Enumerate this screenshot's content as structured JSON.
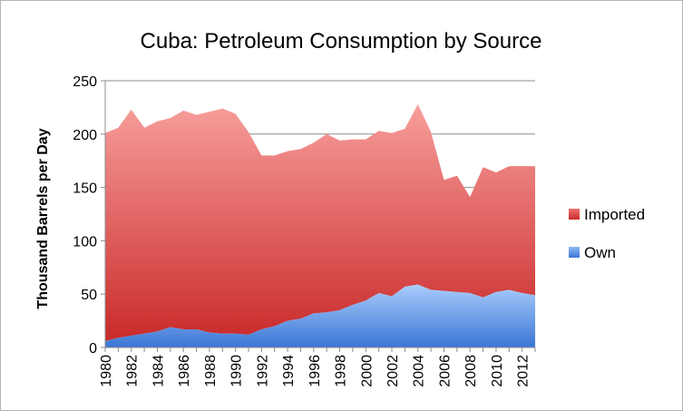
{
  "chart_data": {
    "type": "area",
    "stacked": true,
    "title": "Cuba: Petroleum Consumption by Source",
    "xlabel": "",
    "ylabel": "Thousand Barrels per Day",
    "ylim": [
      0,
      250
    ],
    "yticks": [
      0,
      50,
      100,
      150,
      200,
      250
    ],
    "x": [
      1980,
      1981,
      1982,
      1983,
      1984,
      1985,
      1986,
      1987,
      1988,
      1989,
      1990,
      1991,
      1992,
      1993,
      1994,
      1995,
      1996,
      1997,
      1998,
      1999,
      2000,
      2001,
      2002,
      2003,
      2004,
      2005,
      2006,
      2007,
      2008,
      2009,
      2010,
      2011,
      2012,
      2013
    ],
    "xtick_labels": [
      "1980",
      "1982",
      "1984",
      "1986",
      "1988",
      "1990",
      "1992",
      "1994",
      "1996",
      "1998",
      "2000",
      "2002",
      "2004",
      "2006",
      "2008",
      "2010",
      "2012"
    ],
    "grid": "horizontal",
    "legend_position": "right",
    "series": [
      {
        "name": "Own",
        "color": "#4f86e0",
        "values": [
          6,
          9,
          11,
          13,
          15,
          19,
          17,
          17,
          14,
          13,
          13,
          12,
          17,
          20,
          25,
          27,
          32,
          33,
          35,
          40,
          44,
          51,
          48,
          57,
          59,
          54,
          53,
          52,
          51,
          47,
          52,
          54,
          51,
          49
        ]
      },
      {
        "name": "Imported",
        "color": "#d94848",
        "values": [
          195,
          197,
          212,
          193,
          197,
          196,
          205,
          201,
          207,
          211,
          206,
          190,
          163,
          160,
          159,
          159,
          160,
          167,
          159,
          155,
          151,
          152,
          153,
          148,
          169,
          148,
          104,
          109,
          90,
          122,
          112,
          116,
          119,
          121
        ]
      }
    ]
  }
}
